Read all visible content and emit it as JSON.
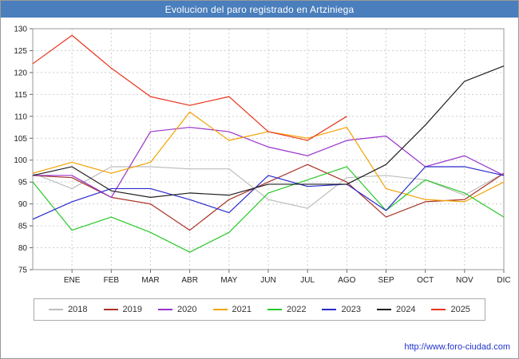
{
  "footer": {
    "url": "http://www.foro-ciudad.com"
  },
  "colors": {
    "title_bar": "#4a7ebc",
    "url_text": "#2233cc",
    "grid": "#cdcdcd",
    "plot_border": "#999999",
    "tick": "#666666",
    "tick_text": "#222222"
  },
  "chart_data": {
    "type": "line",
    "title": "Evolucion del paro registrado en Artziniega",
    "xlabel": "",
    "ylabel": "",
    "ylim": [
      75,
      130
    ],
    "ytick_step": 5,
    "grid": true,
    "legend_position": "bottom",
    "x_labels": [
      "",
      "ENE",
      "FEB",
      "MAR",
      "ABR",
      "MAY",
      "JUN",
      "JUL",
      "AGO",
      "SEP",
      "OCT",
      "NOV",
      "DIC"
    ],
    "series": [
      {
        "name": "2018",
        "color": "#bdbdbd",
        "values": [
          97,
          93.5,
          98.5,
          98.5,
          98,
          98,
          91,
          89,
          96,
          96.5,
          95.5,
          92,
          97
        ]
      },
      {
        "name": "2019",
        "color": "#a93226",
        "values": [
          96.5,
          96,
          91.5,
          90,
          84,
          91,
          95,
          99,
          95,
          87,
          90.5,
          91,
          97
        ]
      },
      {
        "name": "2020",
        "color": "#9932cc",
        "values": [
          96.5,
          96.5,
          91.5,
          106.5,
          107.5,
          106.5,
          103,
          101,
          104.5,
          105.5,
          98.5,
          101,
          96.5
        ]
      },
      {
        "name": "2021",
        "color": "#f2a200",
        "values": [
          97,
          99.5,
          97,
          99.5,
          111,
          104.5,
          106.5,
          105,
          107.5,
          93.5,
          91,
          90.5,
          95
        ]
      },
      {
        "name": "2022",
        "color": "#28c828",
        "values": [
          95,
          84,
          87,
          83.5,
          79,
          83.5,
          92.5,
          95.5,
          98.5,
          88.5,
          95.5,
          92.5,
          87
        ]
      },
      {
        "name": "2023",
        "color": "#2929cc",
        "values": [
          86.5,
          90.5,
          93.5,
          93.5,
          91,
          88,
          96.5,
          94,
          94.5,
          88.5,
          98.5,
          98.5,
          96.5
        ]
      },
      {
        "name": "2024",
        "color": "#202020",
        "values": [
          96.5,
          98.5,
          93,
          91.5,
          92.5,
          92,
          94.5,
          94.5,
          94.5,
          99,
          108,
          118,
          121.5
        ]
      },
      {
        "name": "2025",
        "color": "#e8341c",
        "values": [
          122,
          128.5,
          121,
          114.5,
          112.5,
          114.5,
          106.5,
          104.5,
          110
        ]
      }
    ]
  }
}
